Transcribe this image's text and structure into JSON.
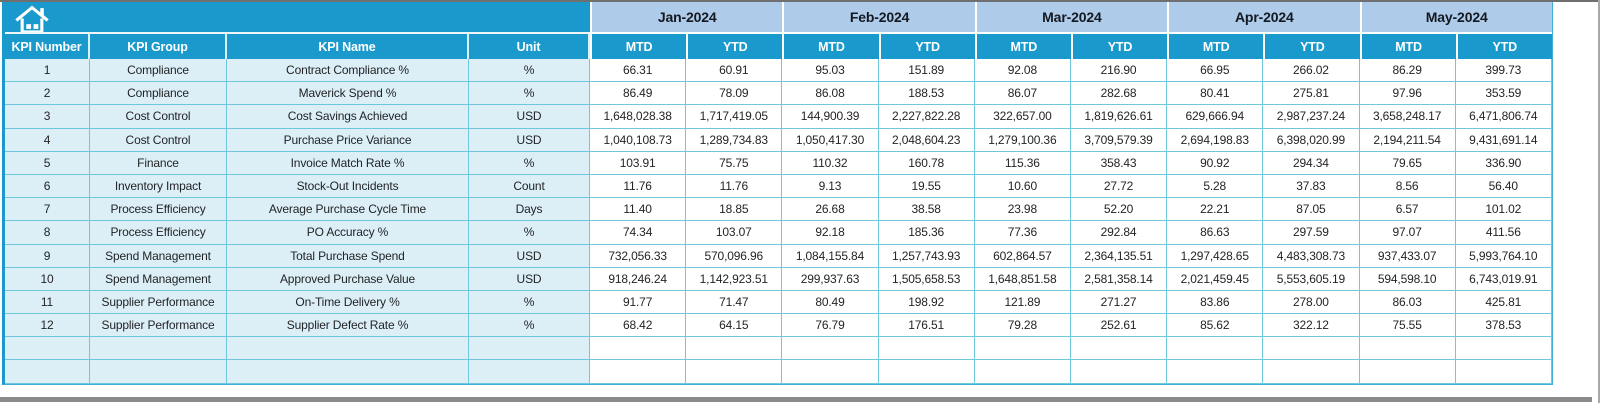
{
  "icons": {
    "home": "house"
  },
  "colors": {
    "header_blue": "#1999cc",
    "month_blue": "#aecbe9",
    "row_tint": "#dceff7",
    "border_teal": "#6fc7de",
    "outer_teal": "#3fb0d4",
    "month_text": "#141821",
    "text_dark": "#222426",
    "window_gray": "#8a8a8a"
  },
  "table": {
    "fixed_headers": [
      "KPI Number",
      "KPI Group",
      "KPI Name",
      "Unit"
    ],
    "months": [
      "Jan-2024",
      "Feb-2024",
      "Mar-2024",
      "Apr-2024",
      "May-2024"
    ],
    "sub_headers": [
      "MTD",
      "YTD"
    ],
    "empty_row_count": 2,
    "rows": [
      {
        "num": "1",
        "group": "Compliance",
        "name": "Contract Compliance %",
        "unit": "%",
        "values": [
          "66.31",
          "60.91",
          "95.03",
          "151.89",
          "92.08",
          "216.90",
          "66.95",
          "266.02",
          "86.29",
          "399.73"
        ]
      },
      {
        "num": "2",
        "group": "Compliance",
        "name": "Maverick Spend %",
        "unit": "%",
        "values": [
          "86.49",
          "78.09",
          "86.08",
          "188.53",
          "86.07",
          "282.68",
          "80.41",
          "275.81",
          "97.96",
          "353.59"
        ]
      },
      {
        "num": "3",
        "group": "Cost Control",
        "name": "Cost Savings Achieved",
        "unit": "USD",
        "values": [
          "1,648,028.38",
          "1,717,419.05",
          "144,900.39",
          "2,227,822.28",
          "322,657.00",
          "1,819,626.61",
          "629,666.94",
          "2,987,237.24",
          "3,658,248.17",
          "6,471,806.74"
        ]
      },
      {
        "num": "4",
        "group": "Cost Control",
        "name": "Purchase Price Variance",
        "unit": "USD",
        "values": [
          "1,040,108.73",
          "1,289,734.83",
          "1,050,417.30",
          "2,048,604.23",
          "1,279,100.36",
          "3,709,579.39",
          "2,694,198.83",
          "6,398,020.99",
          "2,194,211.54",
          "9,431,691.14"
        ]
      },
      {
        "num": "5",
        "group": "Finance",
        "name": "Invoice Match Rate %",
        "unit": "%",
        "values": [
          "103.91",
          "75.75",
          "110.32",
          "160.78",
          "115.36",
          "358.43",
          "90.92",
          "294.34",
          "79.65",
          "336.90"
        ]
      },
      {
        "num": "6",
        "group": "Inventory Impact",
        "name": "Stock-Out Incidents",
        "unit": "Count",
        "values": [
          "11.76",
          "11.76",
          "9.13",
          "19.55",
          "10.60",
          "27.72",
          "5.28",
          "37.83",
          "8.56",
          "56.40"
        ]
      },
      {
        "num": "7",
        "group": "Process Efficiency",
        "name": "Average Purchase Cycle Time",
        "unit": "Days",
        "values": [
          "11.40",
          "18.85",
          "26.68",
          "38.58",
          "23.98",
          "52.20",
          "22.21",
          "87.05",
          "6.57",
          "101.02"
        ]
      },
      {
        "num": "8",
        "group": "Process Efficiency",
        "name": "PO Accuracy %",
        "unit": "%",
        "values": [
          "74.34",
          "103.07",
          "92.18",
          "185.36",
          "77.36",
          "292.84",
          "86.63",
          "297.59",
          "97.07",
          "411.56"
        ]
      },
      {
        "num": "9",
        "group": "Spend Management",
        "name": "Total Purchase Spend",
        "unit": "USD",
        "values": [
          "732,056.33",
          "570,096.96",
          "1,084,155.84",
          "1,257,743.93",
          "602,864.57",
          "2,364,135.51",
          "1,297,428.65",
          "4,483,308.73",
          "937,433.07",
          "5,993,764.10"
        ]
      },
      {
        "num": "10",
        "group": "Spend Management",
        "name": "Approved Purchase Value",
        "unit": "USD",
        "values": [
          "918,246.24",
          "1,142,923.51",
          "299,937.63",
          "1,505,658.53",
          "1,648,851.58",
          "2,581,358.14",
          "2,021,459.45",
          "5,553,605.19",
          "594,598.10",
          "6,743,019.91"
        ]
      },
      {
        "num": "11",
        "group": "Supplier Performance",
        "name": "On-Time Delivery %",
        "unit": "%",
        "values": [
          "91.77",
          "71.47",
          "80.49",
          "198.92",
          "121.89",
          "271.27",
          "83.86",
          "278.00",
          "86.03",
          "425.81"
        ]
      },
      {
        "num": "12",
        "group": "Supplier Performance",
        "name": "Supplier Defect Rate %",
        "unit": "%",
        "values": [
          "68.42",
          "64.15",
          "76.79",
          "176.51",
          "79.28",
          "252.61",
          "85.62",
          "322.12",
          "75.55",
          "378.53"
        ]
      }
    ]
  }
}
